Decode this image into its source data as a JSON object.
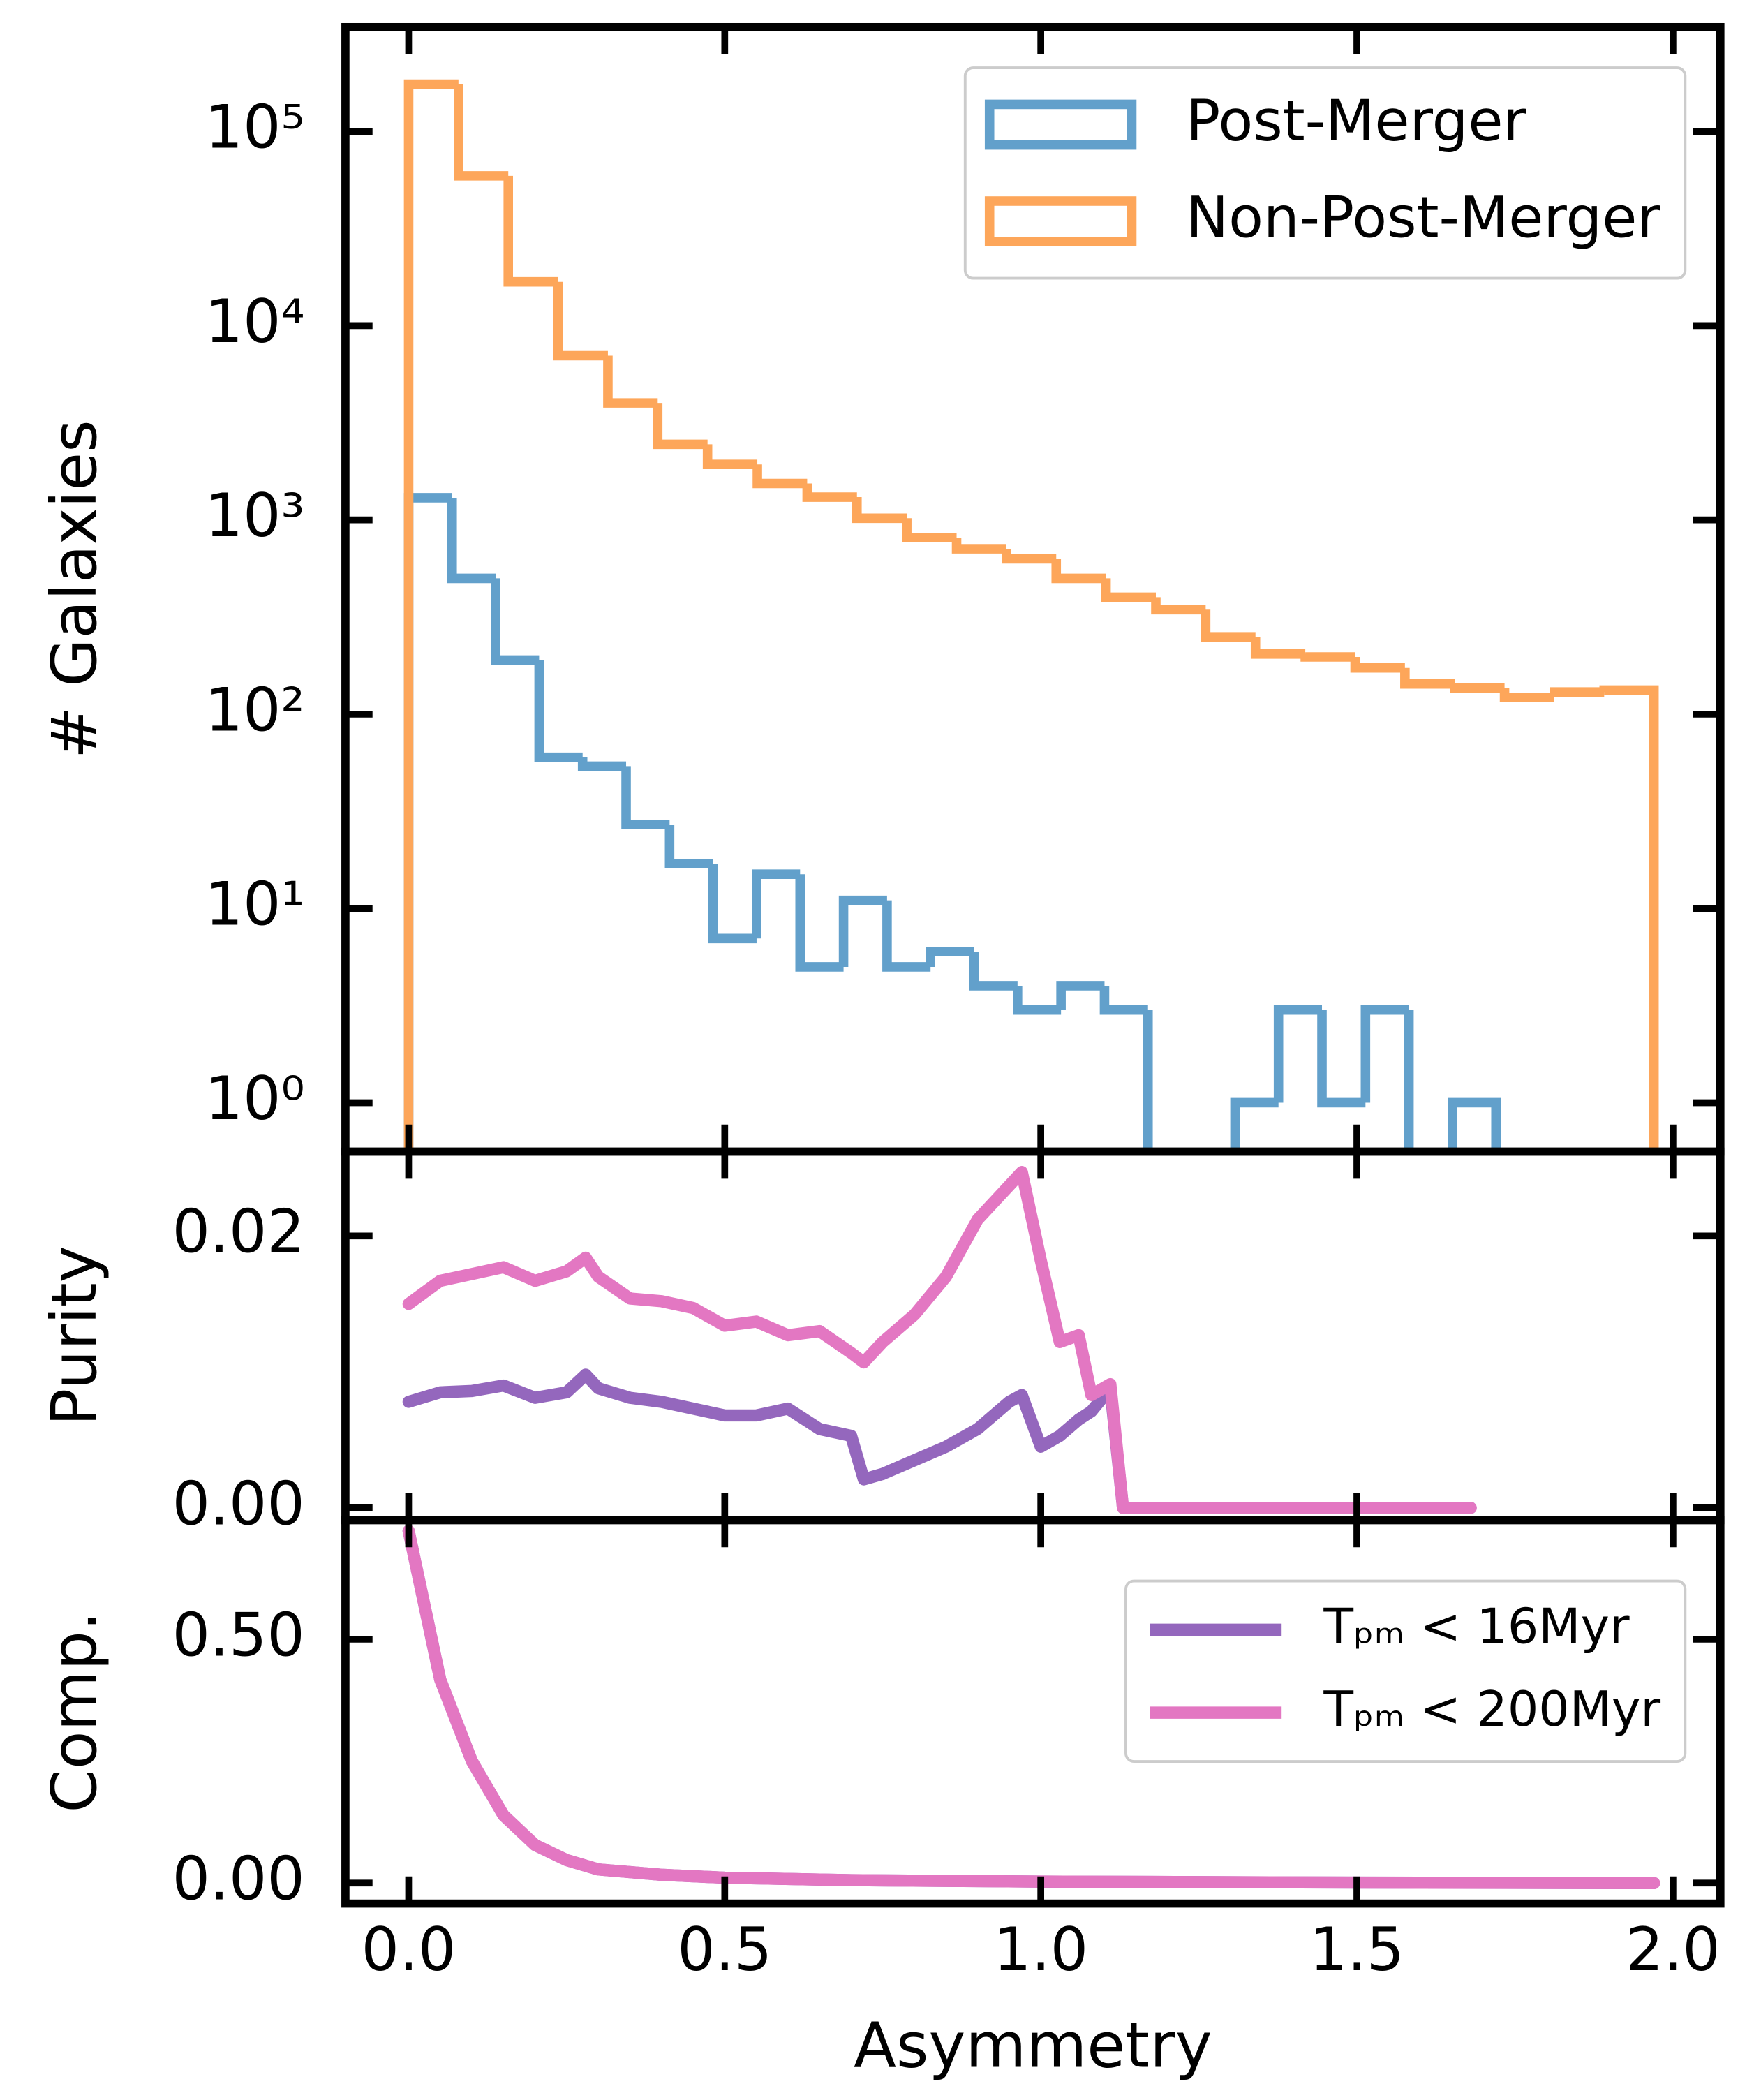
{
  "chart_data": [
    {
      "type": "hist",
      "ylabel": "# Galaxies",
      "log": true,
      "ylim": [
        0.56,
        344000
      ],
      "yticks": [
        {
          "value": 1,
          "label": "10⁰"
        },
        {
          "value": 10,
          "label": "10¹"
        },
        {
          "value": 100,
          "label": "10²"
        },
        {
          "value": 1000,
          "label": "10³"
        },
        {
          "value": 10000,
          "label": "10⁴"
        },
        {
          "value": 100000,
          "label": "10⁵"
        }
      ],
      "legend": "upper right",
      "series": [
        {
          "name": "Post-Merger",
          "color": "#62a0cb",
          "bins": [
            0,
            0.0688,
            0.1376,
            0.2064,
            0.2752,
            0.344,
            0.4128,
            0.4816,
            0.5504,
            0.6192,
            0.688,
            0.7568,
            0.8256,
            0.8944,
            0.9632,
            1.032,
            1.1008,
            1.1696,
            1.2384,
            1.3072,
            1.376,
            1.4448,
            1.5136,
            1.5824,
            1.6512,
            1.72
          ],
          "values": [
            1300,
            500,
            190,
            60,
            54,
            27,
            17,
            7,
            15,
            5,
            11,
            5,
            6,
            4,
            3,
            4,
            3,
            0,
            0,
            1,
            3,
            1,
            3,
            0,
            1
          ]
        },
        {
          "name": "Non-Post-Merger",
          "color": "#fda65a",
          "bins": [
            0,
            0.0788,
            0.1576,
            0.2364,
            0.3152,
            0.394,
            0.4728,
            0.5516,
            0.6304,
            0.7092,
            0.788,
            0.8668,
            0.9456,
            1.0244,
            1.1032,
            1.182,
            1.2608,
            1.3396,
            1.4184,
            1.4972,
            1.576,
            1.6548,
            1.7336,
            1.8124,
            1.8912,
            1.97
          ],
          "values": [
            175000,
            59000,
            16800,
            7000,
            4000,
            2450,
            1930,
            1540,
            1310,
            1020,
            810,
            710,
            630,
            500,
            400,
            345,
            250,
            204,
            197,
            173,
            143,
            136,
            122,
            130,
            133
          ]
        }
      ]
    },
    {
      "type": "line",
      "ylabel": "Purity",
      "ylim": [
        -0.0009,
        0.0262
      ],
      "yticks": [
        {
          "value": 0,
          "label": "0.00"
        },
        {
          "value": 0.02,
          "label": "0.02"
        }
      ],
      "x": [
        0,
        0.05,
        0.1,
        0.15,
        0.2,
        0.25,
        0.28,
        0.3,
        0.35,
        0.4,
        0.45,
        0.5,
        0.55,
        0.6,
        0.65,
        0.7,
        0.72,
        0.75,
        0.8,
        0.85,
        0.9,
        0.95,
        0.97,
        1.0,
        1.03,
        1.06,
        1.08,
        1.11,
        1.13,
        1.2,
        1.4,
        1.68
      ],
      "series": [
        {
          "color": "#9467bd",
          "values": [
            0.0078,
            0.0085,
            0.0086,
            0.009,
            0.0081,
            0.0085,
            0.0098,
            0.0088,
            0.0081,
            0.0078,
            0.0073,
            0.0068,
            0.0068,
            0.0073,
            0.0058,
            0.0053,
            0.0021,
            0.0025,
            0.0035,
            0.0045,
            0.0058,
            0.0078,
            0.0083,
            0.0045,
            0.0053,
            0.0065,
            0.0071,
            0.0088,
            0,
            0,
            0,
            0
          ]
        },
        {
          "color": "#e377c2",
          "values": [
            0.015,
            0.0167,
            0.0172,
            0.0177,
            0.0167,
            0.0174,
            0.0184,
            0.017,
            0.0154,
            0.0152,
            0.0147,
            0.0134,
            0.0137,
            0.0127,
            0.013,
            0.0114,
            0.0107,
            0.0122,
            0.0142,
            0.017,
            0.0212,
            0.0237,
            0.0247,
            0.0182,
            0.0122,
            0.0127,
            0.0083,
            0.0091,
            0,
            0,
            0,
            0
          ]
        }
      ]
    },
    {
      "type": "line",
      "ylabel": "Comp.",
      "xlabel": "Asymmetry",
      "ylim": [
        -0.042,
        0.744
      ],
      "yticks": [
        {
          "value": 0,
          "label": "0.00"
        },
        {
          "value": 0.5,
          "label": "0.50"
        }
      ],
      "xlim": [
        -0.1,
        2.075
      ],
      "xticks": [
        {
          "value": 0,
          "label": "0.0"
        },
        {
          "value": 0.5,
          "label": "0.5"
        },
        {
          "value": 1,
          "label": "1.0"
        },
        {
          "value": 1.5,
          "label": "1.5"
        },
        {
          "value": 2,
          "label": "2.0"
        }
      ],
      "legend": "center right",
      "x": [
        0,
        0.05,
        0.1,
        0.15,
        0.2,
        0.25,
        0.3,
        0.4,
        0.5,
        0.7,
        1.0,
        1.5,
        1.97
      ],
      "series": [
        {
          "name": "Tₚₘ < 16Myr",
          "color": "#9467bd",
          "values": [
            0.722,
            0.417,
            0.25,
            0.139,
            0.078,
            0.047,
            0.028,
            0.017,
            0.011,
            0.006,
            0.003,
            0.001,
            0
          ]
        },
        {
          "name": "Tₚₘ < 200Myr",
          "color": "#e377c2",
          "values": [
            0.722,
            0.417,
            0.25,
            0.139,
            0.078,
            0.047,
            0.028,
            0.017,
            0.011,
            0.006,
            0.003,
            0.001,
            0
          ]
        }
      ]
    }
  ]
}
